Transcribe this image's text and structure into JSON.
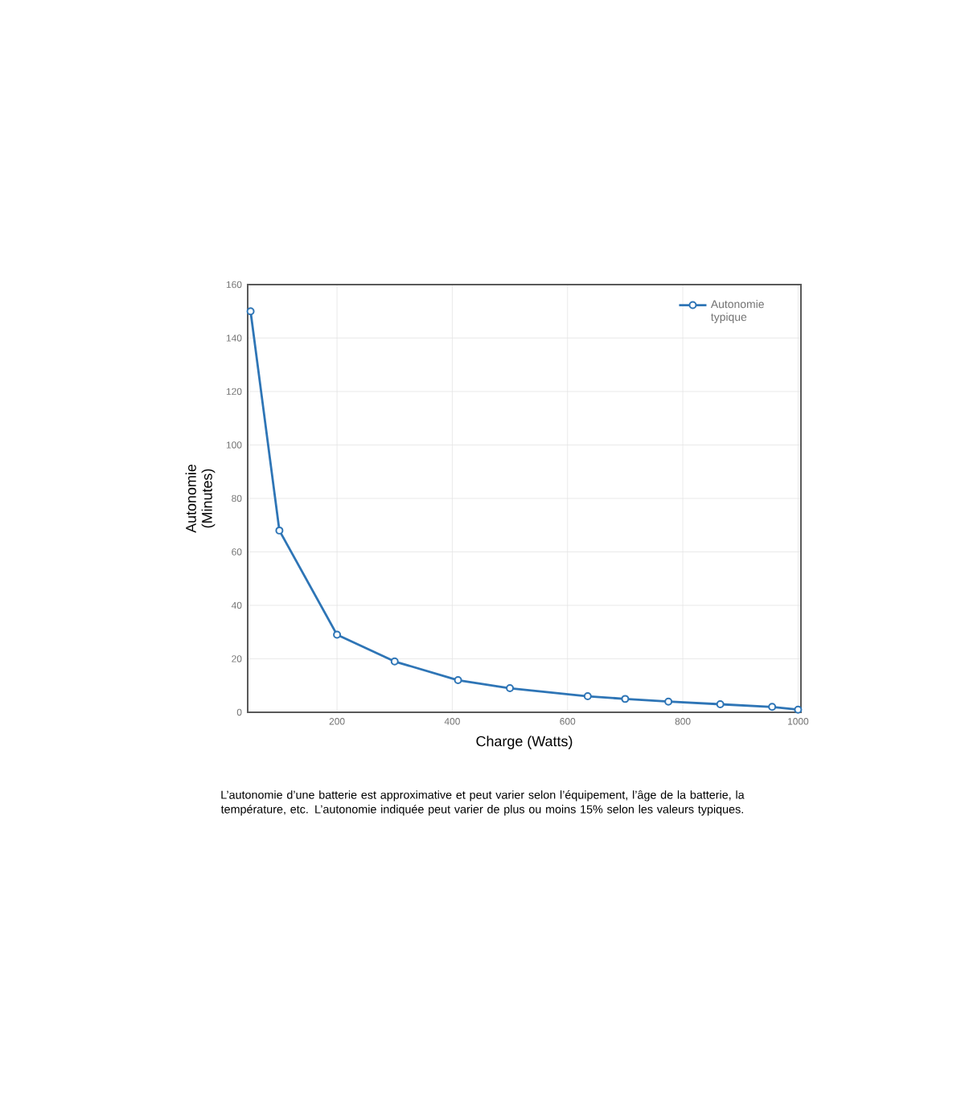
{
  "chart_data": {
    "type": "line",
    "xlabel": "Charge (Watts)",
    "ylabel": "Autonomie (Minutes)",
    "x": [
      50,
      100,
      200,
      300,
      410,
      500,
      635,
      700,
      775,
      865,
      955,
      1000
    ],
    "series": [
      {
        "name": "Autonomie typique",
        "color": "#2e75b6",
        "values": [
          150,
          68,
          29,
          19,
          12,
          9,
          6,
          5,
          4,
          3,
          2,
          1
        ]
      }
    ],
    "xlim": [
      45,
      1005
    ],
    "xticks": [
      200,
      400,
      600,
      800,
      1000
    ],
    "ylim": [
      0,
      160
    ],
    "yticks": [
      0,
      20,
      40,
      60,
      80,
      100,
      120,
      140,
      160
    ],
    "grid": true,
    "legend": "top right",
    "marker": "circle",
    "line_style": "solid",
    "annotations": [
      "L’autonomie d’une batterie est approximative et peut varier selon l’équipement, l’âge de la batterie, la température, etc. L’autonomie indiquée peut varier de plus ou moins 15% selon les valeurs typiques."
    ]
  }
}
